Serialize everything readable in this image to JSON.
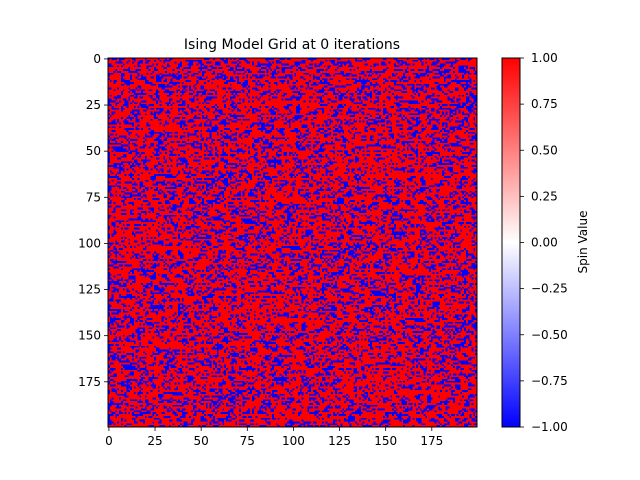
{
  "chart_data": {
    "type": "heatmap",
    "title": "Ising Model Grid at 0 iterations",
    "grid_size": 200,
    "values_description": "random spins in {-1, +1}",
    "xlim": [
      0,
      199
    ],
    "ylim": [
      199,
      0
    ],
    "x_ticks": [
      0,
      25,
      50,
      75,
      100,
      125,
      150,
      175
    ],
    "y_ticks": [
      0,
      25,
      50,
      75,
      100,
      125,
      150,
      175
    ],
    "x_tick_labels": [
      "0",
      "25",
      "50",
      "75",
      "100",
      "125",
      "150",
      "175"
    ],
    "y_tick_labels": [
      "0",
      "25",
      "50",
      "75",
      "100",
      "125",
      "150",
      "175"
    ],
    "colormap": [
      "#0000ff",
      "#ffffff",
      "#ff0000"
    ],
    "colorbar": {
      "label": "Spin Value",
      "range": [
        -1.0,
        1.0
      ],
      "ticks": [
        1.0,
        0.75,
        0.5,
        0.25,
        0.0,
        -0.25,
        -0.5,
        -0.75,
        -1.0
      ],
      "tick_labels": [
        "1.00",
        "0.75",
        "0.50",
        "0.25",
        "0.00",
        "−0.25",
        "−0.50",
        "−0.75",
        "−1.00"
      ]
    }
  }
}
